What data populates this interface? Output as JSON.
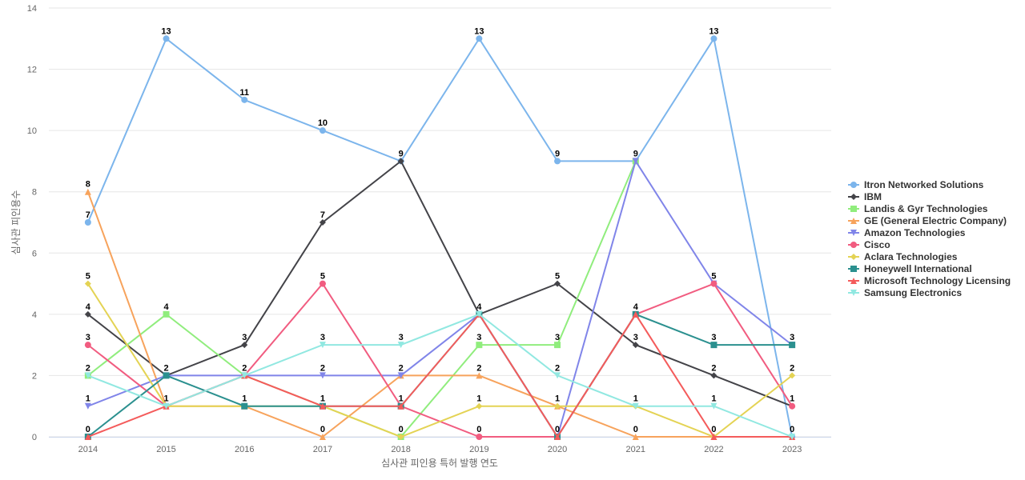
{
  "chart_data": {
    "type": "line",
    "title": "",
    "xlabel": "심사관 피인용 특허 발행 연도",
    "ylabel": "심사관 피인용수",
    "categories": [
      "2014",
      "2015",
      "2016",
      "2017",
      "2018",
      "2019",
      "2020",
      "2021",
      "2022",
      "2023"
    ],
    "ylim": [
      0,
      14
    ],
    "yticks": [
      0,
      2,
      4,
      6,
      8,
      10,
      12,
      14
    ],
    "grid": true,
    "legend_position": "right",
    "series": [
      {
        "name": "Itron Networked Solutions",
        "color": "#7cb5ec",
        "marker": "circle",
        "values": [
          7,
          13,
          11,
          10,
          9,
          13,
          9,
          9,
          13,
          0
        ]
      },
      {
        "name": "IBM",
        "color": "#434348",
        "marker": "diamond",
        "values": [
          4,
          2,
          3,
          7,
          9,
          4,
          5,
          3,
          2,
          1
        ]
      },
      {
        "name": "Landis & Gyr Technologies",
        "color": "#90ed7d",
        "marker": "square",
        "values": [
          2,
          4,
          2,
          null,
          0,
          3,
          3,
          9,
          null,
          null
        ]
      },
      {
        "name": "GE (General Electric Company)",
        "color": "#f7a35c",
        "marker": "triangle",
        "values": [
          8,
          1,
          1,
          0,
          2,
          2,
          1,
          0,
          0,
          0
        ]
      },
      {
        "name": "Amazon Technologies",
        "color": "#8085e9",
        "marker": "triangle-down",
        "values": [
          1,
          2,
          2,
          2,
          2,
          4,
          0,
          9,
          5,
          3
        ]
      },
      {
        "name": "Cisco",
        "color": "#f15c80",
        "marker": "circle",
        "values": [
          3,
          1,
          2,
          5,
          1,
          0,
          0,
          4,
          5,
          1
        ]
      },
      {
        "name": "Aclara Technologies",
        "color": "#e4d354",
        "marker": "diamond",
        "values": [
          5,
          1,
          1,
          1,
          0,
          1,
          1,
          1,
          0,
          2
        ]
      },
      {
        "name": "Honeywell International",
        "color": "#2b908f",
        "marker": "square",
        "values": [
          0,
          2,
          1,
          1,
          1,
          4,
          0,
          4,
          3,
          3
        ]
      },
      {
        "name": "Microsoft Technology Licensing",
        "color": "#f45b5b",
        "marker": "triangle",
        "values": [
          0,
          1,
          2,
          1,
          1,
          4,
          0,
          4,
          0,
          0
        ]
      },
      {
        "name": "Samsung Electronics",
        "color": "#91e8e1",
        "marker": "triangle-down",
        "values": [
          2,
          1,
          2,
          3,
          3,
          4,
          2,
          1,
          1,
          0
        ]
      }
    ],
    "data_labels": [
      {
        "category": "2014",
        "value": 8,
        "text": "8"
      },
      {
        "category": "2014",
        "value": 7,
        "text": "7"
      },
      {
        "category": "2014",
        "value": 5,
        "text": "5"
      },
      {
        "category": "2014",
        "value": 4,
        "text": "4"
      },
      {
        "category": "2014",
        "value": 3,
        "text": "3"
      },
      {
        "category": "2014",
        "value": 2,
        "text": "2"
      },
      {
        "category": "2014",
        "value": 1,
        "text": "1"
      },
      {
        "category": "2014",
        "value": 0,
        "text": "0"
      },
      {
        "category": "2015",
        "value": 13,
        "text": "13"
      },
      {
        "category": "2015",
        "value": 4,
        "text": "4"
      },
      {
        "category": "2015",
        "value": 2,
        "text": "2"
      },
      {
        "category": "2015",
        "value": 1,
        "text": "1"
      },
      {
        "category": "2016",
        "value": 11,
        "text": "11"
      },
      {
        "category": "2016",
        "value": 3,
        "text": "3"
      },
      {
        "category": "2016",
        "value": 2,
        "text": "2"
      },
      {
        "category": "2016",
        "value": 1,
        "text": "1"
      },
      {
        "category": "2017",
        "value": 10,
        "text": "10"
      },
      {
        "category": "2017",
        "value": 7,
        "text": "7"
      },
      {
        "category": "2017",
        "value": 5,
        "text": "5"
      },
      {
        "category": "2017",
        "value": 3,
        "text": "3"
      },
      {
        "category": "2017",
        "value": 2,
        "text": "2"
      },
      {
        "category": "2017",
        "value": 1,
        "text": "1"
      },
      {
        "category": "2017",
        "value": 0,
        "text": "0"
      },
      {
        "category": "2018",
        "value": 9,
        "text": "9"
      },
      {
        "category": "2018",
        "value": 3,
        "text": "3"
      },
      {
        "category": "2018",
        "value": 2,
        "text": "2"
      },
      {
        "category": "2018",
        "value": 1,
        "text": "1"
      },
      {
        "category": "2018",
        "value": 0,
        "text": "0"
      },
      {
        "category": "2019",
        "value": 13,
        "text": "13"
      },
      {
        "category": "2019",
        "value": 4,
        "text": "4"
      },
      {
        "category": "2019",
        "value": 3,
        "text": "3"
      },
      {
        "category": "2019",
        "value": 2,
        "text": "2"
      },
      {
        "category": "2019",
        "value": 1,
        "text": "1"
      },
      {
        "category": "2019",
        "value": 0,
        "text": "0"
      },
      {
        "category": "2020",
        "value": 9,
        "text": "9"
      },
      {
        "category": "2020",
        "value": 5,
        "text": "5"
      },
      {
        "category": "2020",
        "value": 3,
        "text": "3"
      },
      {
        "category": "2020",
        "value": 2,
        "text": "2"
      },
      {
        "category": "2020",
        "value": 1,
        "text": "1"
      },
      {
        "category": "2020",
        "value": 0,
        "text": "0"
      },
      {
        "category": "2021",
        "value": 9,
        "text": "9"
      },
      {
        "category": "2021",
        "value": 4,
        "text": "4"
      },
      {
        "category": "2021",
        "value": 3,
        "text": "3"
      },
      {
        "category": "2021",
        "value": 1,
        "text": "1"
      },
      {
        "category": "2021",
        "value": 0,
        "text": "0"
      },
      {
        "category": "2022",
        "value": 13,
        "text": "13"
      },
      {
        "category": "2022",
        "value": 5,
        "text": "5"
      },
      {
        "category": "2022",
        "value": 3,
        "text": "3"
      },
      {
        "category": "2022",
        "value": 2,
        "text": "2"
      },
      {
        "category": "2022",
        "value": 1,
        "text": "1"
      },
      {
        "category": "2022",
        "value": 0,
        "text": "0"
      },
      {
        "category": "2023",
        "value": 3,
        "text": "3"
      },
      {
        "category": "2023",
        "value": 2,
        "text": "2"
      },
      {
        "category": "2023",
        "value": 1,
        "text": "1"
      },
      {
        "category": "2023",
        "value": 0,
        "text": "0"
      }
    ]
  }
}
